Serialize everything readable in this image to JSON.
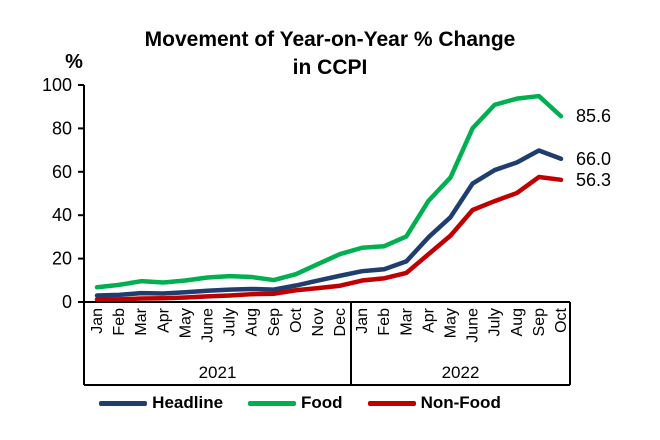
{
  "chart_data": {
    "type": "line",
    "title": "Movement of Year-on-Year % Change in CCPI",
    "title_line1": "Movement of Year-on-Year % Change",
    "title_line2": "in CCPI",
    "y_unit": "%",
    "ylim": [
      0,
      100
    ],
    "y_ticks": [
      0,
      20,
      40,
      60,
      80,
      100
    ],
    "grid": false,
    "legend_position": "bottom",
    "x_groups": [
      {
        "year": "2021",
        "months": [
          "Jan",
          "Feb",
          "Mar",
          "Apr",
          "May",
          "June",
          "July",
          "Aug",
          "Sep",
          "Oct",
          "Nov",
          "Dec"
        ]
      },
      {
        "year": "2022",
        "months": [
          "Jan",
          "Feb",
          "Mar",
          "Apr",
          "May",
          "June",
          "July",
          "Aug",
          "Sep",
          "Oct"
        ]
      }
    ],
    "series": [
      {
        "name": "Headline",
        "color": "#1F3D6D",
        "end_label": "66.0",
        "values": [
          3.0,
          3.3,
          4.1,
          3.9,
          4.5,
          5.2,
          5.7,
          6.0,
          5.7,
          7.6,
          9.9,
          12.1,
          14.2,
          15.1,
          18.7,
          29.8,
          39.1,
          54.6,
          60.8,
          64.3,
          69.8,
          66.0
        ]
      },
      {
        "name": "Food",
        "color": "#00B050",
        "end_label": "85.6",
        "values": [
          6.8,
          7.9,
          9.6,
          9.0,
          9.9,
          11.3,
          11.9,
          11.5,
          10.1,
          12.8,
          17.5,
          22.1,
          25.0,
          25.7,
          30.2,
          46.6,
          57.4,
          80.1,
          90.9,
          93.7,
          94.9,
          85.6
        ]
      },
      {
        "name": "Non-Food",
        "color": "#C00000",
        "end_label": "56.3",
        "values": [
          1.2,
          1.2,
          1.6,
          1.7,
          2.1,
          2.6,
          3.0,
          3.6,
          3.8,
          5.4,
          6.4,
          7.5,
          9.9,
          10.9,
          13.4,
          22.0,
          30.6,
          42.4,
          46.5,
          50.2,
          57.6,
          56.3
        ]
      }
    ]
  }
}
